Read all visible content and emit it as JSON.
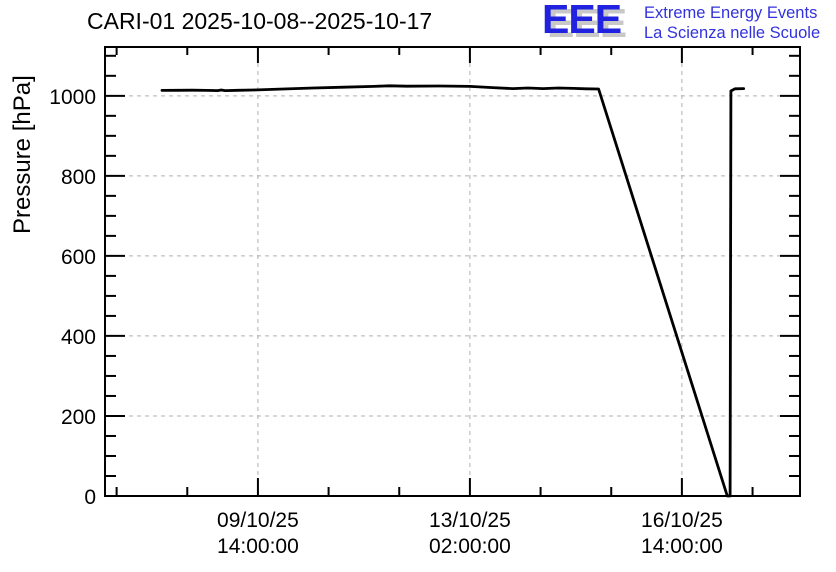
{
  "header": {
    "title": "CARI-01 2025-10-08--2025-10-17",
    "logo": {
      "acronym": "EEE",
      "line1": "Extreme Energy Events",
      "line2": "La Scienza nelle Scuole",
      "blue": "#2121e0",
      "shadow_gray": "#c8c8c8"
    }
  },
  "chart_data": {
    "type": "line",
    "title": "CARI-01 2025-10-08--2025-10-17",
    "station": "CARI-01",
    "xlabel": "",
    "ylabel": "Pressure [hPa]",
    "ylim": [
      0,
      1122
    ],
    "y_major_ticks": [
      0,
      200,
      400,
      600,
      800,
      1000
    ],
    "y_minor_step": 50,
    "y_minor_max": 1100,
    "grid": true,
    "grid_color": "#b0b0b0",
    "line_color": "#000000",
    "frame_color": "#000000",
    "x_time_origin": "2025-10-08 00:00:00",
    "xlim_hours": [
      -22.6,
      252.8
    ],
    "x_major_ticks": [
      {
        "hours": 38,
        "date": "09/10/25",
        "time": "14:00:00"
      },
      {
        "hours": 122,
        "date": "13/10/25",
        "time": "02:00:00"
      },
      {
        "hours": 206,
        "date": "16/10/25",
        "time": "14:00:00"
      }
    ],
    "x_minor_ticks_hours": [
      -18,
      10,
      66,
      94,
      150,
      178,
      234
    ],
    "series": [
      {
        "name": "pressure",
        "points_hours_hpa": [
          [
            0,
            1013.5
          ],
          [
            6,
            1013.8
          ],
          [
            12,
            1014
          ],
          [
            18,
            1013.5
          ],
          [
            22,
            1013
          ],
          [
            23.5,
            1014.5
          ],
          [
            25,
            1013
          ],
          [
            30,
            1013.8
          ],
          [
            36,
            1014.5
          ],
          [
            48,
            1017
          ],
          [
            60,
            1019.5
          ],
          [
            72,
            1021.5
          ],
          [
            84,
            1023.5
          ],
          [
            90,
            1025
          ],
          [
            97,
            1024
          ],
          [
            110,
            1024.5
          ],
          [
            122,
            1023.5
          ],
          [
            131,
            1020.5
          ],
          [
            139,
            1018
          ],
          [
            145,
            1019.5
          ],
          [
            151,
            1018
          ],
          [
            157,
            1019.5
          ],
          [
            163,
            1018.5
          ],
          [
            168,
            1017.5
          ],
          [
            173,
            1017
          ],
          [
            224,
            0
          ],
          [
            225.1,
            0
          ],
          [
            225.4,
            1012
          ],
          [
            227,
            1017.5
          ],
          [
            230.5,
            1018
          ]
        ]
      }
    ]
  }
}
